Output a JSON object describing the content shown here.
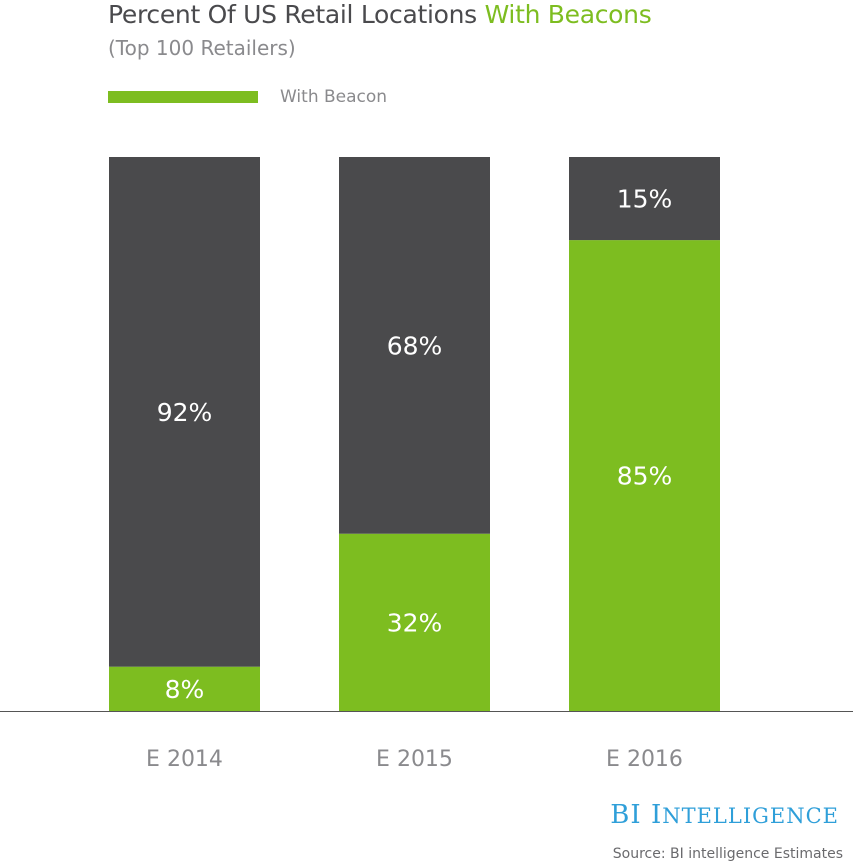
{
  "title": {
    "main": "Percent Of US Retail Locations",
    "accent": "With Beacons"
  },
  "subtitle": "(Top 100 Retailers)",
  "legend": {
    "label": "With Beacon"
  },
  "colors": {
    "with_beacon": "#7dbd20",
    "without_beacon": "#4a4a4c",
    "axis": "#555555"
  },
  "brand": {
    "first": "BI",
    "initial": "I",
    "rest": "NTELLIGENCE"
  },
  "source": "Source: BI intelligence Estimates",
  "chart_data": {
    "type": "bar",
    "stacked": true,
    "categories": [
      "E 2014",
      "E 2015",
      "E 2016"
    ],
    "series": [
      {
        "name": "With Beacon",
        "values": [
          8,
          32,
          85
        ],
        "labels": [
          "8%",
          "32%",
          "85%"
        ]
      },
      {
        "name": "",
        "values": [
          92,
          68,
          15
        ],
        "labels": [
          "92%",
          "68%",
          "15%"
        ]
      }
    ],
    "ylim": [
      0,
      100
    ],
    "legend_position": "top-left",
    "grid": false
  }
}
